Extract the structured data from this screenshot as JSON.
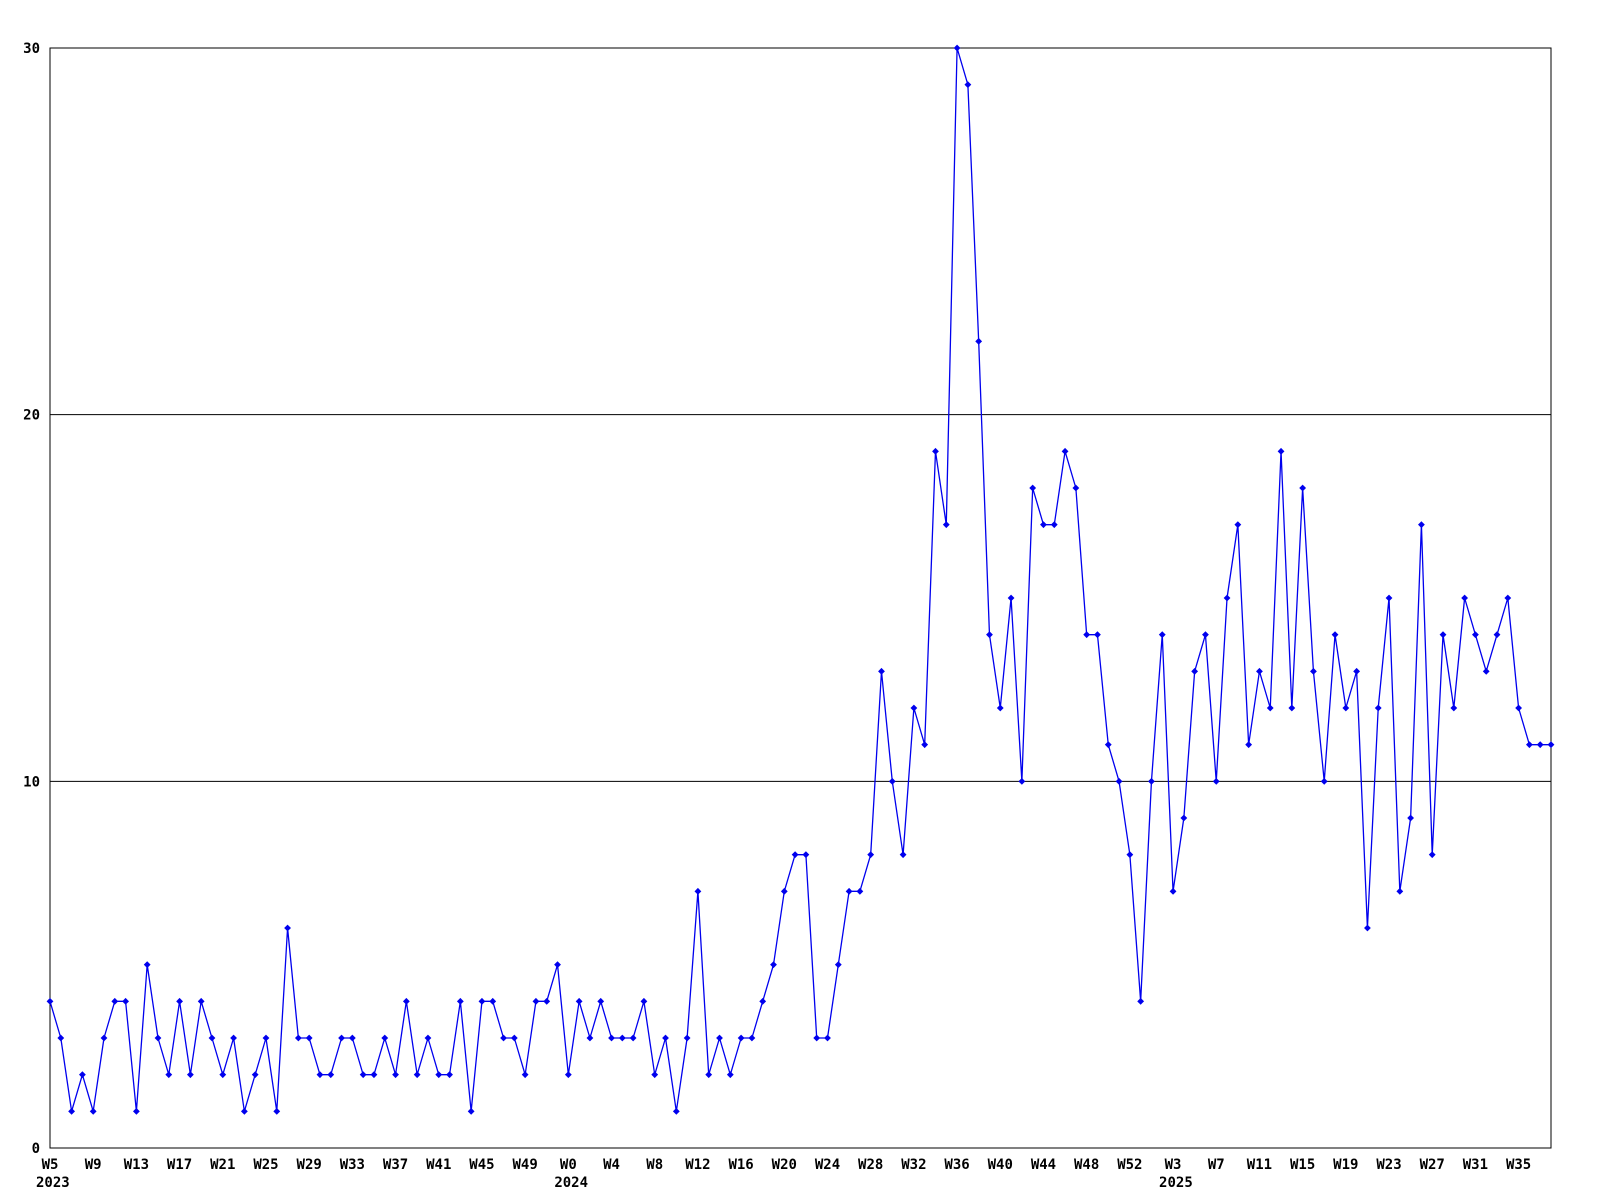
{
  "chart_data": {
    "type": "line",
    "title": "",
    "xlabel": "",
    "ylabel": "",
    "ylim": [
      0,
      30
    ],
    "y_ticks": [
      0,
      10,
      20,
      30
    ],
    "gridlines_y": [
      10,
      20
    ],
    "grid": "horizontal-only",
    "legend": "none",
    "line_color": "#0000ee",
    "axis_color": "#000000",
    "background_color": "#ffffff",
    "marker": "diamond",
    "x_unit": "ISO week, weekly samples",
    "x_tick_every_n_points": 4,
    "x_tick_labels": [
      "W5",
      "W9",
      "W13",
      "W17",
      "W21",
      "W25",
      "W29",
      "W33",
      "W37",
      "W41",
      "W45",
      "W49",
      "W0",
      "W4",
      "W8",
      "W12",
      "W16",
      "W20",
      "W24",
      "W28",
      "W32",
      "W36",
      "W40",
      "W44",
      "W48",
      "W52",
      "W3",
      "W7",
      "W11",
      "W15",
      "W19",
      "W23",
      "W27",
      "W31",
      "W35"
    ],
    "year_labels": [
      {
        "tick_index": 0,
        "text": "2023"
      },
      {
        "tick_index": 12,
        "text": "2024"
      },
      {
        "tick_index": 26,
        "text": "2025"
      }
    ],
    "values": [
      4,
      3,
      1,
      2,
      1,
      3,
      4,
      4,
      1,
      5,
      3,
      2,
      4,
      2,
      4,
      3,
      2,
      3,
      1,
      2,
      3,
      1,
      6,
      3,
      3,
      2,
      2,
      3,
      3,
      2,
      2,
      3,
      2,
      4,
      2,
      3,
      2,
      2,
      4,
      1,
      4,
      4,
      3,
      3,
      2,
      4,
      4,
      5,
      2,
      4,
      3,
      4,
      3,
      3,
      3,
      4,
      2,
      3,
      1,
      3,
      7,
      2,
      3,
      2,
      3,
      3,
      4,
      5,
      7,
      8,
      8,
      3,
      3,
      5,
      7,
      7,
      8,
      13,
      10,
      8,
      12,
      11,
      19,
      17,
      30,
      29,
      22,
      14,
      12,
      15,
      10,
      18,
      17,
      17,
      19,
      18,
      14,
      14,
      11,
      10,
      8,
      4,
      10,
      14,
      7,
      9,
      13,
      14,
      10,
      15,
      17,
      11,
      13,
      12,
      19,
      12,
      18,
      13,
      10,
      14,
      12,
      13,
      6,
      12,
      15,
      7,
      9,
      17,
      8,
      14,
      12,
      15,
      14,
      13,
      14,
      15,
      12,
      11,
      11,
      11
    ]
  }
}
